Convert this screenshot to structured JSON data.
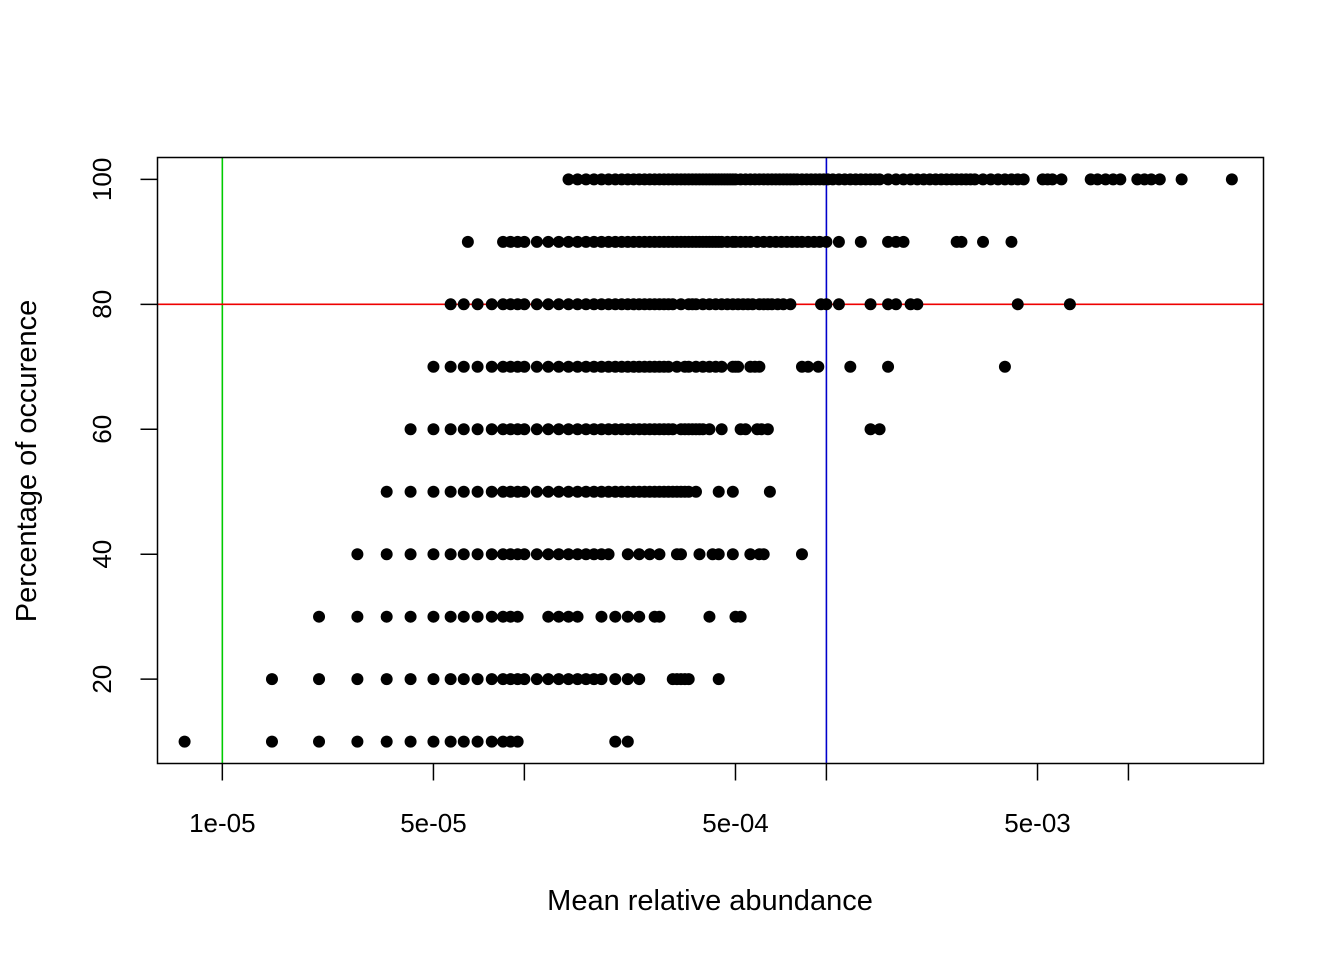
{
  "chart_data": {
    "type": "scatter",
    "title": "",
    "xlabel": "Mean relative abundance",
    "ylabel": "Percentage of occurence",
    "x_scale": "log",
    "xlim": [
      6.1e-06,
      0.028
    ],
    "ylim": [
      6.5,
      103.5
    ],
    "x_ticks": [
      {
        "value": 1e-05,
        "label": "1e-05"
      },
      {
        "value": 5e-05,
        "label": "5e-05"
      },
      {
        "value": 0.0001,
        "label": ""
      },
      {
        "value": 0.0005,
        "label": "5e-04"
      },
      {
        "value": 0.001,
        "label": ""
      },
      {
        "value": 0.005,
        "label": "5e-03"
      },
      {
        "value": 0.01,
        "label": ""
      }
    ],
    "y_ticks": [
      {
        "value": 20,
        "label": "20"
      },
      {
        "value": 40,
        "label": "40"
      },
      {
        "value": 60,
        "label": "60"
      },
      {
        "value": 80,
        "label": "80"
      },
      {
        "value": 100,
        "label": "100"
      }
    ],
    "grid": false,
    "reference_lines": [
      {
        "orientation": "vertical",
        "value": 1e-05,
        "color": "#00cc00"
      },
      {
        "orientation": "vertical",
        "value": 0.001,
        "color": "#0000cc"
      },
      {
        "orientation": "horizontal",
        "value": 80,
        "color": "#ee0000"
      }
    ],
    "point_color": "#000000",
    "rows": [
      {
        "y": 10,
        "x_range": [
          7.5e-06,
          0.00026
        ],
        "x": [
          7.5e-06,
          1.46e-05,
          2.09e-05,
          2.8e-05,
          3.5e-05,
          4.2e-05,
          5e-05,
          5.7e-05,
          6.3e-05,
          7e-05,
          7.8e-05,
          8.5e-05,
          9e-05,
          9.5e-05,
          0.0002,
          0.00022
        ]
      },
      {
        "y": 20,
        "x_range": [
          1.46e-05,
          0.00044
        ],
        "x": [
          1.46e-05,
          2.09e-05,
          2.8e-05,
          3.5e-05,
          4.2e-05,
          5e-05,
          5.7e-05,
          6.3e-05,
          7e-05,
          7.8e-05,
          8.5e-05,
          9e-05,
          9.5e-05,
          0.0001,
          0.00011,
          0.00012,
          0.00013,
          0.00014,
          0.00015,
          0.00016,
          0.00017,
          0.00018,
          0.0002,
          0.00022,
          0.00024,
          0.00031,
          0.00032,
          0.00033,
          0.00034,
          0.00035,
          0.00044
        ]
      },
      {
        "y": 30,
        "x_range": [
          2.09e-05,
          0.00052
        ],
        "x": [
          2.09e-05,
          2.8e-05,
          3.5e-05,
          4.2e-05,
          5e-05,
          5.7e-05,
          6.3e-05,
          7e-05,
          7.8e-05,
          8.5e-05,
          9e-05,
          9.5e-05,
          0.00012,
          0.00013,
          0.00014,
          0.00015,
          0.00018,
          0.0002,
          0.00022,
          0.00024,
          0.00027,
          0.00028,
          0.00041,
          0.0005,
          0.00052
        ]
      },
      {
        "y": 40,
        "x_range": [
          2.8e-05,
          0.00083
        ],
        "x": [
          2.8e-05,
          3.5e-05,
          4.2e-05,
          5e-05,
          5.7e-05,
          6.3e-05,
          7e-05,
          7.8e-05,
          8.5e-05,
          9e-05,
          9.5e-05,
          0.0001,
          0.00011,
          0.00012,
          0.00013,
          0.00014,
          0.00015,
          0.00016,
          0.00017,
          0.00018,
          0.00019,
          0.00022,
          0.00024,
          0.00026,
          0.00028,
          0.00032,
          0.00033,
          0.00038,
          0.00042,
          0.00044,
          0.00049,
          0.00056,
          0.0006,
          0.00062,
          0.00083
        ]
      },
      {
        "y": 50,
        "x_range": [
          3.5e-05,
          0.00065
        ],
        "x": [
          3.5e-05,
          4.2e-05,
          5e-05,
          5.7e-05,
          6.3e-05,
          7e-05,
          7.8e-05,
          8.5e-05,
          9e-05,
          9.5e-05,
          0.0001,
          0.00011,
          0.00012,
          0.00013,
          0.00014,
          0.00015,
          0.00016,
          0.00017,
          0.00018,
          0.00019,
          0.0002,
          0.00021,
          0.00022,
          0.00023,
          0.00024,
          0.00025,
          0.00026,
          0.00027,
          0.00028,
          0.00029,
          0.0003,
          0.00031,
          0.00032,
          0.00033,
          0.00034,
          0.00035,
          0.00037,
          0.00044,
          0.00049,
          0.00065
        ]
      },
      {
        "y": 60,
        "x_range": [
          4.2e-05,
          0.0015
        ],
        "x": [
          4.2e-05,
          5e-05,
          5.7e-05,
          6.3e-05,
          7e-05,
          7.8e-05,
          8.5e-05,
          9e-05,
          9.5e-05,
          0.0001,
          0.00011,
          0.00012,
          0.00013,
          0.00014,
          0.00015,
          0.00016,
          0.00017,
          0.00018,
          0.00019,
          0.0002,
          0.00021,
          0.00022,
          0.00023,
          0.00024,
          0.00025,
          0.00026,
          0.00027,
          0.00028,
          0.00029,
          0.0003,
          0.00031,
          0.00033,
          0.00034,
          0.00035,
          0.00036,
          0.00037,
          0.00038,
          0.00039,
          0.00041,
          0.00045,
          0.00052,
          0.00054,
          0.00059,
          0.00061,
          0.00064,
          0.0014,
          0.0015
        ]
      },
      {
        "y": 70,
        "x_range": [
          5e-05,
          0.0039
        ],
        "x": [
          5e-05,
          5.7e-05,
          6.3e-05,
          7e-05,
          7.8e-05,
          8.5e-05,
          9e-05,
          9.5e-05,
          0.0001,
          0.00011,
          0.00012,
          0.00013,
          0.00014,
          0.00015,
          0.00016,
          0.00017,
          0.00018,
          0.00019,
          0.0002,
          0.00021,
          0.00022,
          0.00023,
          0.00024,
          0.00025,
          0.00026,
          0.00027,
          0.00028,
          0.00029,
          0.0003,
          0.00032,
          0.00034,
          0.00035,
          0.00037,
          0.00039,
          0.00041,
          0.00043,
          0.00045,
          0.00049,
          0.0005,
          0.00051,
          0.00056,
          0.00058,
          0.0006,
          0.00083,
          0.00087,
          0.00094,
          0.0012,
          0.0016,
          0.0039
        ]
      },
      {
        "y": 80,
        "x_range": [
          5.7e-05,
          0.0064
        ],
        "x": [
          5.7e-05,
          6.3e-05,
          7e-05,
          7.8e-05,
          8.5e-05,
          9e-05,
          9.5e-05,
          0.0001,
          0.00011,
          0.00012,
          0.00013,
          0.00014,
          0.00015,
          0.00016,
          0.00017,
          0.00018,
          0.00019,
          0.0002,
          0.00021,
          0.00022,
          0.00023,
          0.00024,
          0.00025,
          0.00026,
          0.00027,
          0.00028,
          0.00029,
          0.0003,
          0.00031,
          0.00033,
          0.00035,
          0.00036,
          0.00037,
          0.00039,
          0.00041,
          0.00043,
          0.00045,
          0.00047,
          0.00049,
          0.00051,
          0.00053,
          0.00055,
          0.00057,
          0.0006,
          0.00062,
          0.00064,
          0.00066,
          0.00069,
          0.00072,
          0.00076,
          0.00096,
          0.001,
          0.0011,
          0.0014,
          0.0016,
          0.0017,
          0.0019,
          0.002,
          0.0043,
          0.0064
        ]
      },
      {
        "y": 90,
        "x_range": [
          6.5e-05,
          0.0041
        ],
        "x": [
          6.5e-05,
          8.5e-05,
          9e-05,
          9.5e-05,
          0.0001,
          0.00011,
          0.00012,
          0.00013,
          0.00014,
          0.00015,
          0.00016,
          0.00017,
          0.00018,
          0.00019,
          0.0002,
          0.00021,
          0.00022,
          0.00023,
          0.00024,
          0.00025,
          0.00026,
          0.00027,
          0.00028,
          0.00029,
          0.0003,
          0.00031,
          0.00032,
          0.00033,
          0.00034,
          0.00035,
          0.00036,
          0.00037,
          0.00038,
          0.00039,
          0.0004,
          0.00041,
          0.00042,
          0.00043,
          0.00044,
          0.00045,
          0.00047,
          0.00049,
          0.0005,
          0.00052,
          0.00054,
          0.00056,
          0.00059,
          0.00062,
          0.00065,
          0.00068,
          0.00071,
          0.00074,
          0.00077,
          0.0008,
          0.00083,
          0.00087,
          0.00091,
          0.00095,
          0.001,
          0.0011,
          0.0013,
          0.0016,
          0.0017,
          0.0018,
          0.0027,
          0.0028,
          0.0033,
          0.0041
        ]
      },
      {
        "y": 100,
        "x_range": [
          0.00014,
          0.022
        ],
        "x": [
          0.00014,
          0.00015,
          0.00016,
          0.00017,
          0.00018,
          0.00019,
          0.0002,
          0.00021,
          0.00022,
          0.00023,
          0.00024,
          0.00025,
          0.00026,
          0.00027,
          0.00028,
          0.00029,
          0.0003,
          0.00031,
          0.00032,
          0.00033,
          0.00034,
          0.00035,
          0.00036,
          0.00037,
          0.00038,
          0.00039,
          0.0004,
          0.00041,
          0.00042,
          0.00043,
          0.00044,
          0.00045,
          0.00046,
          0.00047,
          0.00048,
          0.00049,
          0.0005,
          0.00052,
          0.00054,
          0.00056,
          0.00058,
          0.0006,
          0.00062,
          0.00064,
          0.00066,
          0.00068,
          0.0007,
          0.00072,
          0.00074,
          0.00076,
          0.00078,
          0.0008,
          0.00083,
          0.00086,
          0.00089,
          0.00092,
          0.00095,
          0.00098,
          0.00101,
          0.00105,
          0.0011,
          0.00115,
          0.0012,
          0.00125,
          0.0013,
          0.00135,
          0.0014,
          0.00145,
          0.0015,
          0.0016,
          0.0017,
          0.0018,
          0.0019,
          0.002,
          0.0021,
          0.0022,
          0.0023,
          0.0024,
          0.0025,
          0.0026,
          0.0027,
          0.0028,
          0.0029,
          0.003,
          0.0031,
          0.0033,
          0.0035,
          0.0037,
          0.0039,
          0.0041,
          0.0043,
          0.0045,
          0.0052,
          0.0054,
          0.0056,
          0.006,
          0.0075,
          0.0079,
          0.0084,
          0.0089,
          0.0094,
          0.0107,
          0.0113,
          0.0119,
          0.0127,
          0.015,
          0.022
        ]
      }
    ]
  }
}
